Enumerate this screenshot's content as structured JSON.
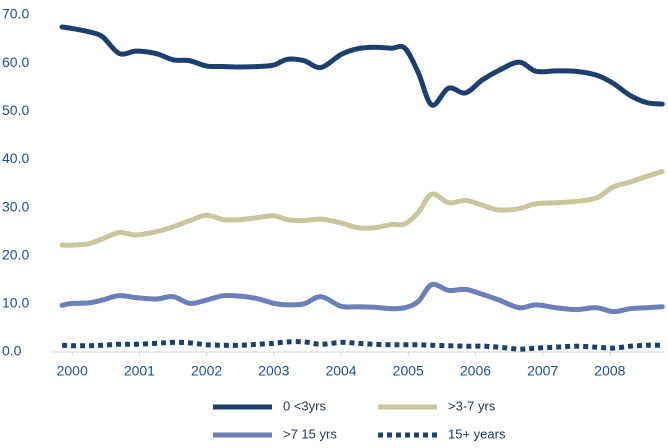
{
  "chart_data": {
    "type": "line",
    "x": [
      1999.85,
      2000.0,
      2000.25,
      2000.45,
      2000.7,
      2000.95,
      2001.25,
      2001.5,
      2001.75,
      2002.0,
      2002.25,
      2002.5,
      2002.75,
      2003.0,
      2003.2,
      2003.45,
      2003.7,
      2004.0,
      2004.25,
      2004.5,
      2004.75,
      2004.95,
      2005.15,
      2005.35,
      2005.6,
      2005.85,
      2006.1,
      2006.35,
      2006.65,
      2006.9,
      2007.2,
      2007.5,
      2007.8,
      2008.05,
      2008.3,
      2008.55,
      2008.78
    ],
    "series": [
      {
        "name": "0 <3yrs",
        "color": "#1b3f6e",
        "linestyle": "solid",
        "values": [
          67.5,
          67.2,
          66.5,
          65.5,
          62,
          62.5,
          62,
          60.7,
          60.5,
          59.4,
          59.3,
          59.2,
          59.3,
          59.6,
          60.8,
          60.5,
          59.1,
          61.8,
          63,
          63.3,
          63.1,
          63.1,
          58,
          51.3,
          54.8,
          53.8,
          56.5,
          58.5,
          60.2,
          58.3,
          58.4,
          58.3,
          57.5,
          55.8,
          53.3,
          51.8,
          51.5
        ]
      },
      {
        "name": ">3-7 yrs",
        "color": "#c9c59c",
        "linestyle": "solid",
        "values": [
          22.2,
          22.2,
          22.5,
          23.5,
          24.8,
          24.3,
          25,
          26,
          27.3,
          28.4,
          27.5,
          27.5,
          27.9,
          28.3,
          27.5,
          27.3,
          27.6,
          26.8,
          25.8,
          25.8,
          26.5,
          26.6,
          29,
          32.8,
          31,
          31.5,
          30.5,
          29.5,
          29.8,
          30.8,
          31,
          31.3,
          32,
          34.3,
          35.3,
          36.5,
          37.5
        ]
      },
      {
        "name": ">7  15 yrs",
        "color": "#6a80b8",
        "linestyle": "solid",
        "values": [
          9.7,
          10.1,
          10.2,
          10.8,
          11.7,
          11.3,
          11,
          11.5,
          10.1,
          10.8,
          11.7,
          11.6,
          11.1,
          10.1,
          9.8,
          10,
          11.5,
          9.5,
          9.4,
          9.3,
          9,
          9.2,
          10.5,
          14,
          12.8,
          13,
          12,
          10.8,
          9.2,
          9.8,
          9.2,
          8.8,
          9.2,
          8.4,
          9,
          9.2,
          9.4
        ]
      },
      {
        "name": "15+ years",
        "color": "#1b3f6e",
        "linestyle": "dotted",
        "values": [
          1.4,
          1.3,
          1.3,
          1.4,
          1.6,
          1.6,
          1.8,
          2.0,
          1.9,
          1.5,
          1.4,
          1.4,
          1.6,
          1.8,
          2.1,
          2.1,
          1.6,
          2.0,
          1.8,
          1.6,
          1.5,
          1.5,
          1.5,
          1.4,
          1.3,
          1.2,
          1.2,
          1.0,
          0.6,
          0.8,
          1.0,
          1.2,
          1.0,
          0.8,
          1.2,
          1.4,
          1.4
        ]
      }
    ],
    "xlim": [
      1999.67,
      2008.82
    ],
    "xticks": [
      2000,
      2001,
      2002,
      2003,
      2004,
      2005,
      2006,
      2007,
      2008
    ],
    "ylim": [
      0,
      70
    ],
    "yticks": [
      {
        "value": 0,
        "label": "0.0"
      },
      {
        "value": 10,
        "label": "10.0"
      },
      {
        "value": 20,
        "label": "20.0"
      },
      {
        "value": 30,
        "label": "30.0"
      },
      {
        "value": 40,
        "label": "40.0"
      },
      {
        "value": 50,
        "label": "50.0"
      },
      {
        "value": 60,
        "label": "60.0"
      },
      {
        "value": 70,
        "label": "70.0"
      }
    ],
    "grid": false,
    "legend": "bottom"
  }
}
